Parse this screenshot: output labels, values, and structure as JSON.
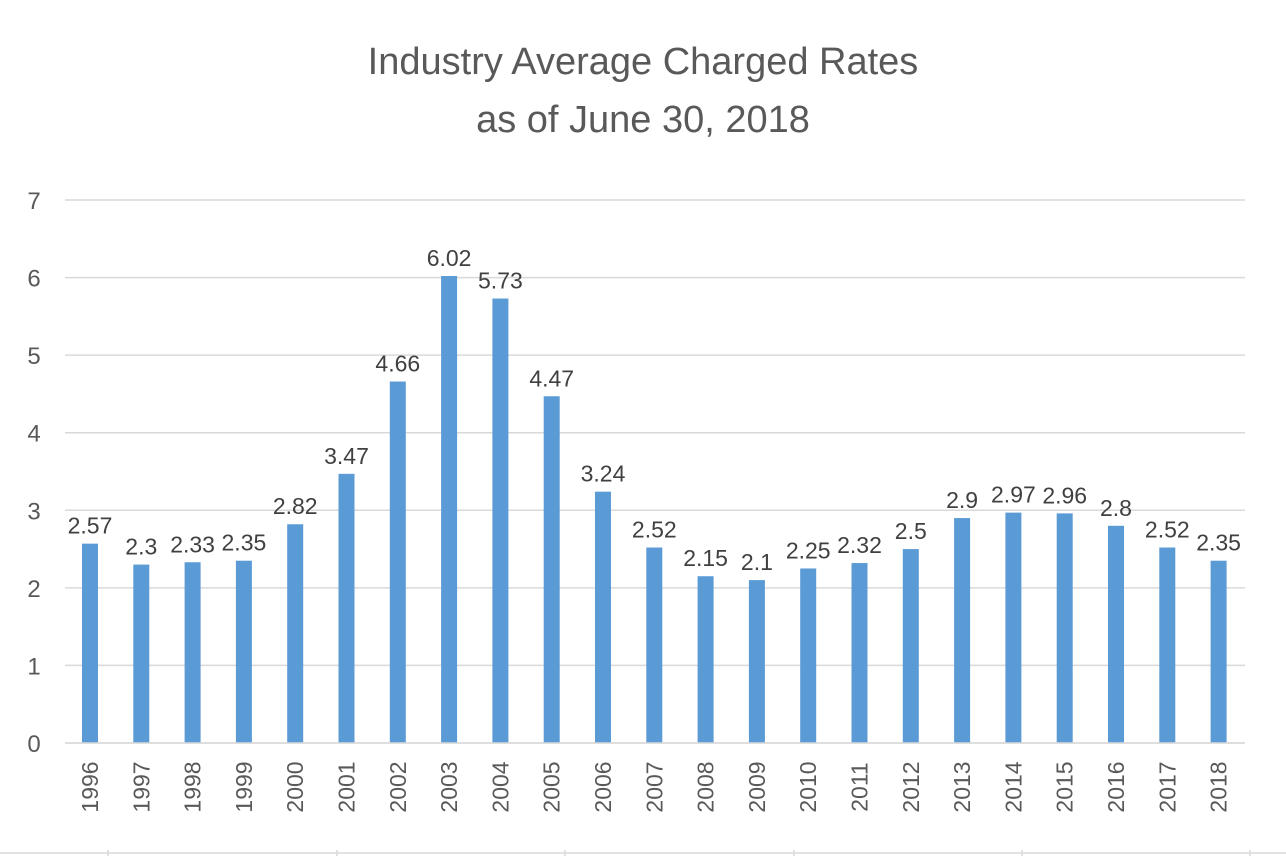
{
  "chart_data": {
    "type": "bar",
    "title": [
      "Industry Average Charged Rates",
      "as of June 30, 2018"
    ],
    "xlabel": "",
    "ylabel": "",
    "categories": [
      "1996",
      "1997",
      "1998",
      "1999",
      "2000",
      "2001",
      "2002",
      "2003",
      "2004",
      "2005",
      "2006",
      "2007",
      "2008",
      "2009",
      "2010",
      "2011",
      "2012",
      "2013",
      "2014",
      "2015",
      "2016",
      "2017",
      "2018"
    ],
    "values": [
      2.57,
      2.3,
      2.33,
      2.35,
      2.82,
      3.47,
      4.66,
      6.02,
      5.73,
      4.47,
      3.24,
      2.52,
      2.15,
      2.1,
      2.25,
      2.32,
      2.5,
      2.9,
      2.97,
      2.96,
      2.8,
      2.52,
      2.35
    ],
    "ylim": [
      0,
      7
    ],
    "yticks": [
      0,
      1,
      2,
      3,
      4,
      5,
      6,
      7
    ],
    "grid": true,
    "legend": "none",
    "data_labels": true,
    "colors": {
      "bar": "#5B9BD5",
      "grid": "#D9D9D9",
      "text": "#595959",
      "label": "#404040"
    }
  }
}
